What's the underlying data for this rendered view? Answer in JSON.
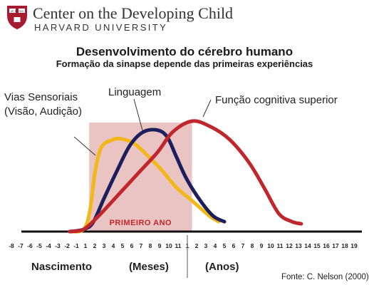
{
  "header": {
    "org_name": "Center on the Developing Child",
    "org_sub": "HARVARD UNIVERSITY",
    "shield_motto": "VE RI TAS"
  },
  "chart_data": {
    "type": "line",
    "title": "Desenvolvimento do cérebro humano",
    "subtitle": "Formação da sinapse depende das primeiras experiências",
    "x_ticks": [
      "-8",
      "-7",
      "-6",
      "-5",
      "-4",
      "-3",
      "-2",
      "-1",
      "1",
      "2",
      "3",
      "4",
      "5",
      "6",
      "7",
      "8",
      "9",
      "10",
      "11",
      "1",
      "2",
      "3",
      "4",
      "5",
      "6",
      "7",
      "8",
      "9",
      "10",
      "11",
      "12",
      "13",
      "14",
      "15",
      "16",
      "17",
      "18",
      "19"
    ],
    "x_index_range": [
      0,
      37
    ],
    "y_range": [
      0,
      100
    ],
    "highlight_region": {
      "label": "PRIMEIRO ANO",
      "x_start": 8.4,
      "x_end": 19.5,
      "color": "#e6b8b8"
    },
    "series": [
      {
        "name": "Vias Sensoriais (Visão, Audição)",
        "color": "#f2b81a",
        "points": [
          [
            6.3,
            0
          ],
          [
            7.8,
            2
          ],
          [
            8.5,
            20
          ],
          [
            9.0,
            52
          ],
          [
            9.7,
            76
          ],
          [
            10.9,
            83
          ],
          [
            11.8,
            84
          ],
          [
            13.2,
            80
          ],
          [
            14.8,
            68
          ],
          [
            16.3,
            55
          ],
          [
            17.8,
            40
          ],
          [
            19.5,
            28
          ],
          [
            21.4,
            14
          ],
          [
            22.4,
            9
          ]
        ]
      },
      {
        "name": "Linguagem",
        "color": "#1b1f5c",
        "points": [
          [
            6.3,
            0
          ],
          [
            7.8,
            2
          ],
          [
            8.8,
            8
          ],
          [
            10.0,
            30
          ],
          [
            11.4,
            55
          ],
          [
            12.8,
            78
          ],
          [
            14.2,
            90
          ],
          [
            15.7,
            92
          ],
          [
            16.8,
            86
          ],
          [
            17.8,
            68
          ],
          [
            18.9,
            48
          ],
          [
            20.4,
            28
          ],
          [
            21.8,
            14
          ],
          [
            23.0,
            9
          ]
        ]
      },
      {
        "name": "Função cognitiva superior",
        "color": "#c0272d",
        "points": [
          [
            6.3,
            0
          ],
          [
            7.8,
            2
          ],
          [
            9.4,
            14
          ],
          [
            11.4,
            32
          ],
          [
            13.6,
            52
          ],
          [
            15.8,
            72
          ],
          [
            17.4,
            90
          ],
          [
            19.5,
            100
          ],
          [
            21.5,
            95
          ],
          [
            23.6,
            83
          ],
          [
            25.7,
            62
          ],
          [
            27.4,
            38
          ],
          [
            28.9,
            16
          ],
          [
            30.3,
            9
          ],
          [
            31.3,
            7
          ]
        ]
      }
    ],
    "annotations": [
      {
        "text": "Vias Sensoriais",
        "series": 0
      },
      {
        "text": "(Visão, Audição)",
        "series": 0
      },
      {
        "text": "Linguagem",
        "series": 1
      },
      {
        "text": "Função cognitiva superior",
        "series": 2
      }
    ],
    "period_labels": [
      "Nascimento",
      "(Meses)",
      "(Anos)"
    ],
    "source": "Fonte: C. Nelson (2000)"
  }
}
